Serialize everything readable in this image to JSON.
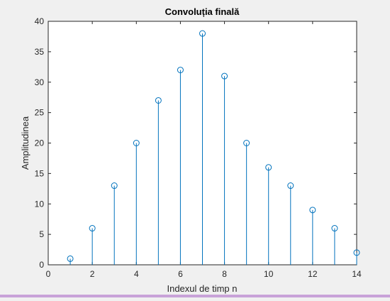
{
  "chart_data": {
    "type": "stem",
    "title": "Convoluția finală",
    "xlabel": "Indexul de timp n",
    "ylabel": "Amplitudinea",
    "x": [
      1,
      2,
      3,
      4,
      5,
      6,
      7,
      8,
      9,
      10,
      11,
      12,
      13,
      14
    ],
    "values": [
      1,
      6,
      13,
      20,
      27,
      32,
      38,
      31,
      20,
      16,
      13,
      9,
      6,
      2
    ],
    "xlim": [
      0,
      14
    ],
    "ylim": [
      0,
      40
    ],
    "xticks": [
      0,
      2,
      4,
      6,
      8,
      10,
      12,
      14
    ],
    "yticks": [
      0,
      5,
      10,
      15,
      20,
      25,
      30,
      35,
      40
    ],
    "grid": false,
    "series_color": "#0072bd"
  }
}
